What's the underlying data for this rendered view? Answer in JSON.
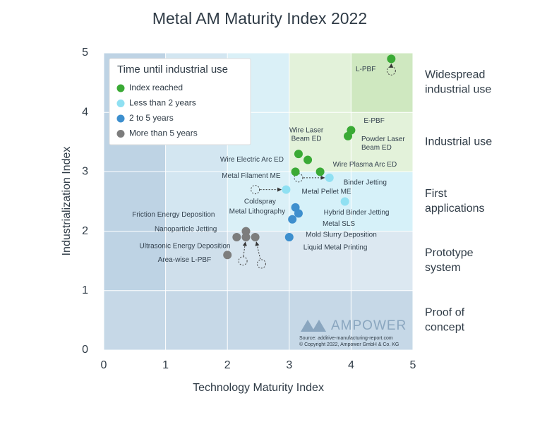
{
  "chart_data": {
    "type": "scatter",
    "title": "Metal AM Maturity Index 2022",
    "x_label": "Technology Maturity Index",
    "y_label": "Industrialization Index",
    "xlim": [
      0,
      5
    ],
    "ylim": [
      0,
      5
    ],
    "xticks": [
      0,
      1,
      2,
      3,
      4,
      5
    ],
    "yticks": [
      0,
      1,
      2,
      3,
      4,
      5
    ],
    "legend_title": "Time until industrial use",
    "legend": "top-left",
    "series": [
      {
        "name": "Index reached",
        "color": "#3aaa35",
        "labels": [
          "L-PBF",
          "E-PBF",
          "Powder Laser\nBeam ED",
          "Wire Laser\nBeam ED",
          "Wire Electric Arc ED",
          "Wire Plasma Arc ED",
          "Metal Filament ME"
        ],
        "x": [
          4.65,
          4.0,
          3.95,
          3.3,
          3.15,
          3.5,
          3.1
        ],
        "y": [
          4.9,
          3.7,
          3.6,
          3.2,
          3.3,
          3.0,
          3.0
        ],
        "prev_x": [
          4.65,
          null,
          null,
          null,
          null,
          null,
          null
        ],
        "prev_y": [
          4.7,
          null,
          null,
          null,
          null,
          null,
          null
        ]
      },
      {
        "name": "Less than 2 years",
        "color": "#8fe0f2",
        "labels": [
          "Binder Jetting",
          "Coldspray",
          "Hybrid Binder Jetting"
        ],
        "x": [
          3.65,
          2.95,
          3.9
        ],
        "y": [
          2.9,
          2.7,
          2.5
        ],
        "prev_x": [
          3.15,
          2.45,
          null
        ],
        "prev_y": [
          2.9,
          2.7,
          null
        ]
      },
      {
        "name": "2 to 5 years",
        "color": "#3d8fce",
        "labels": [
          "Metal Pellet ME",
          "Metal SLS",
          "Mold Slurry Deposition",
          "Liquid Metal Printing"
        ],
        "x": [
          3.1,
          3.15,
          3.05,
          3.0
        ],
        "y": [
          2.4,
          2.3,
          2.2,
          1.9
        ],
        "prev_x": [
          null,
          null,
          null,
          null
        ],
        "prev_y": [
          null,
          null,
          null,
          null
        ]
      },
      {
        "name": "More than 5 years",
        "color": "#7d7d7d",
        "labels": [
          "Friction Energy Deposition",
          "Metal Lithography",
          "Nanoparticle Jetting",
          "Ultrasonic Energy Deposition",
          "Area-wise L-PBF"
        ],
        "x": [
          2.3,
          2.45,
          2.15,
          2.3,
          2.0
        ],
        "y": [
          2.0,
          1.9,
          1.9,
          1.9,
          1.6
        ],
        "prev_x": [
          null,
          2.55,
          null,
          2.25,
          null
        ],
        "prev_y": [
          null,
          1.45,
          null,
          1.5,
          null
        ]
      }
    ],
    "zones": [
      "Widespread\nindustrial use",
      "Industrial use",
      "First\napplications",
      "Prototype\nsystem",
      "Proof of\nconcept"
    ],
    "logo": "AMPOWER",
    "source": "Source: additive-manufacturing-report.com",
    "copyright": "© Copyright 2022, Ampower GmbH & Co. KG"
  }
}
